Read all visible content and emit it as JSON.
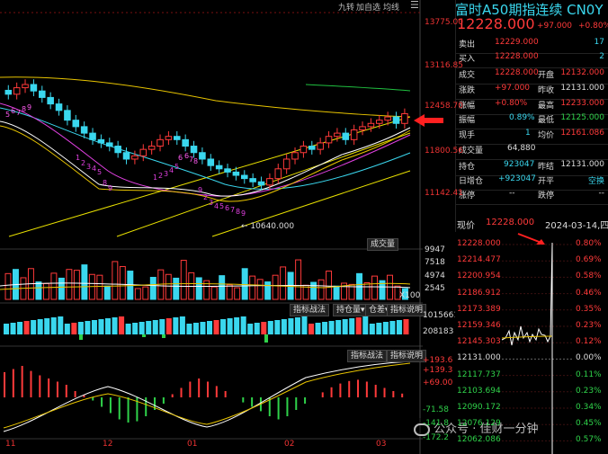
{
  "toolbar": {
    "btn_nine": "九转",
    "btn_add": "加自选",
    "btn_ma": "均线",
    "menu_icon": "menu-icon"
  },
  "title": {
    "name": "富时A50期指连续 CN0Y",
    "price": "12228.000",
    "change": "+97.000",
    "pct": "+0.80%"
  },
  "price_axis": [
    "13775.00",
    "13116.85",
    "12458.70",
    "11800.56",
    "11142.41"
  ],
  "date_axis": [
    "11",
    "12",
    "01",
    "02",
    "03"
  ],
  "low_marker": "10640.000",
  "nine_turn_labels": [
    "5",
    "6",
    "7",
    "8",
    "9",
    "1",
    "2",
    "3",
    "4",
    "5",
    "8",
    "9",
    "1",
    "2",
    "3",
    "4",
    "5",
    "6",
    "6",
    "7",
    "8",
    "9",
    "2",
    "3",
    "4",
    "5",
    "6",
    "7",
    "8",
    "9"
  ],
  "volume": {
    "button": "成交量",
    "ticks": [
      "9947",
      "7518",
      "4974",
      "2545"
    ],
    "unit": "X100"
  },
  "oi": {
    "btn_strategy": "指标战法",
    "btn_oi": "持仓量",
    "btn_diff": "仓差",
    "btn_help": "指标说明",
    "ticks": [
      "1015661",
      "208183"
    ]
  },
  "macd": {
    "btn_strategy": "指标战法",
    "btn_help": "指标说明",
    "ticks": [
      "+193.6",
      "+139.3",
      "+69.00",
      "-71.58",
      "-141.8",
      "-172.2"
    ]
  },
  "quote": {
    "sell_label": "卖出",
    "sell_price": "12229.000",
    "sell_vol": "17",
    "buy_label": "买入",
    "buy_price": "12228.000",
    "buy_vol": "2",
    "deal_label": "成交",
    "deal_price": "12228.000",
    "open_label": "开盘",
    "open_val": "12132.000",
    "chg_label": "涨跌",
    "chg_val": "+97.000",
    "prev_close_label": "昨收",
    "prev_close_val": "12131.000",
    "pct_label": "涨幅",
    "pct_val": "+0.80%",
    "high_label": "最高",
    "high_val": "12233.000",
    "amp_label": "振幅",
    "amp_val": "0.89%",
    "low_label": "最低",
    "low_val": "12125.000",
    "hand_label": "现手",
    "hand_val": "1",
    "avg_label": "均价",
    "avg_val": "12161.086",
    "vol_label": "成交量",
    "vol_val": "64,880",
    "pos_label": "持仓",
    "pos_val": "923047",
    "settle_label": "昨结",
    "settle_val": "12131.000",
    "daypos_label": "日增仓",
    "daypos_val": "+923047",
    "open_close_label": "开平",
    "open_close_val": "空换",
    "limit_up_label": "涨停",
    "limit_up_val": "--",
    "limit_down_label": "跌停",
    "limit_down_val": "--"
  },
  "intraday": {
    "now_label": "现价",
    "now_price": "12228.000",
    "date": "2024-03-14,四",
    "prices": [
      "12228.000",
      "12214.477",
      "12200.954",
      "12186.912",
      "12173.389",
      "12159.346",
      "12145.303",
      "12131.000",
      "12117.737",
      "12103.694",
      "12090.172",
      "12076.129",
      "12062.086"
    ],
    "pcts": [
      "0.80%",
      "0.69%",
      "0.58%",
      "0.46%",
      "0.35%",
      "0.23%",
      "0.12%",
      "0.00%",
      "0.11%",
      "0.23%",
      "0.34%",
      "0.45%",
      "0.57%"
    ]
  },
  "watermark": "公众号 · 佳财一分钟",
  "colors": {
    "up": "#ff3a3a",
    "down": "#3ad7ee",
    "ma_yellow": "#e8c400",
    "ma_pink": "#e040e0",
    "channel": "#e8e000"
  }
}
